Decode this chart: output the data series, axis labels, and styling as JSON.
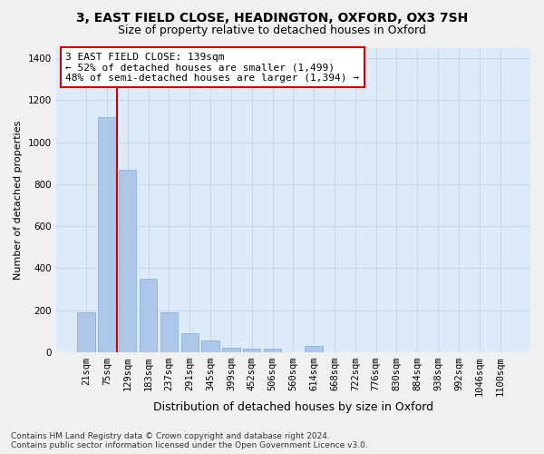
{
  "title_line1": "3, EAST FIELD CLOSE, HEADINGTON, OXFORD, OX3 7SH",
  "title_line2": "Size of property relative to detached houses in Oxford",
  "xlabel": "Distribution of detached houses by size in Oxford",
  "ylabel": "Number of detached properties",
  "categories": [
    "21sqm",
    "75sqm",
    "129sqm",
    "183sqm",
    "237sqm",
    "291sqm",
    "345sqm",
    "399sqm",
    "452sqm",
    "506sqm",
    "560sqm",
    "614sqm",
    "668sqm",
    "722sqm",
    "776sqm",
    "830sqm",
    "884sqm",
    "938sqm",
    "992sqm",
    "1046sqm",
    "1100sqm"
  ],
  "values": [
    190,
    1120,
    870,
    350,
    190,
    90,
    55,
    20,
    18,
    15,
    0,
    30,
    0,
    0,
    0,
    0,
    0,
    0,
    0,
    0,
    0
  ],
  "bar_color": "#aec6e8",
  "bar_edge_color": "#7eaad4",
  "grid_color": "#c8d8e8",
  "background_color": "#ddeaf8",
  "fig_background": "#f0f0f0",
  "vline_x_pos": 1.5,
  "vline_color": "#cc0000",
  "annotation_text": "3 EAST FIELD CLOSE: 139sqm\n← 52% of detached houses are smaller (1,499)\n48% of semi-detached houses are larger (1,394) →",
  "annotation_box_color": "#ffffff",
  "annotation_box_edge_color": "#cc0000",
  "ylim": [
    0,
    1450
  ],
  "yticks": [
    0,
    200,
    400,
    600,
    800,
    1000,
    1200,
    1400
  ],
  "footnote": "Contains HM Land Registry data © Crown copyright and database right 2024.\nContains public sector information licensed under the Open Government Licence v3.0.",
  "title_fontsize": 10,
  "subtitle_fontsize": 9,
  "xlabel_fontsize": 9,
  "ylabel_fontsize": 8,
  "tick_fontsize": 7.5,
  "annotation_fontsize": 8,
  "footnote_fontsize": 6.5
}
